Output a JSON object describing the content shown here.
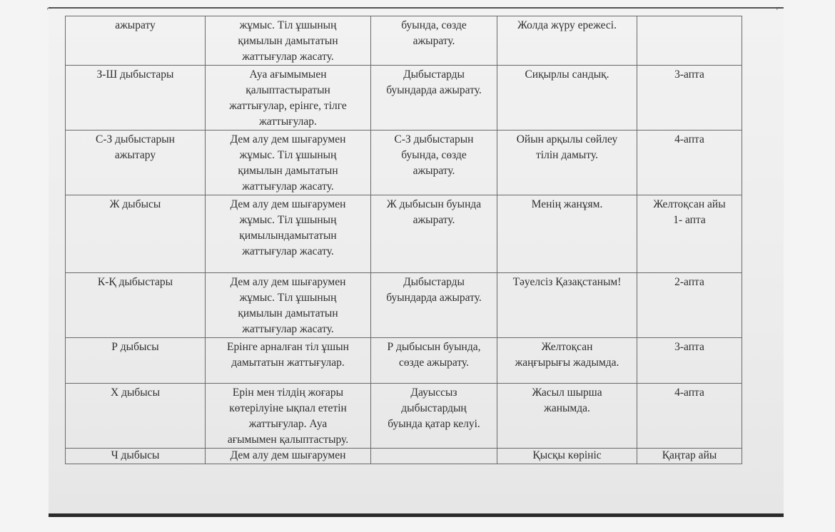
{
  "rows": [
    {
      "c1": "ажырату",
      "c2": "жұмыс. Тіл ұшының\nқимылын дамытатын\nжаттығулар жасату.",
      "c3": "буында, сөзде\nажырату.",
      "c4": "Жолда жүру ережесі.",
      "c5": ""
    },
    {
      "c1": "З-Ш дыбыстары",
      "c2": "Ауа ағымымыен\nқалыптастыратын\nжаттығулар, ерінге, тілге\nжаттығулар.",
      "c3": "Дыбыстарды\nбуындарда ажырату.",
      "c4": "Сиқырлы сандық.",
      "c5": "3-апта"
    },
    {
      "c1": "С-З дыбыстарын\nажытару",
      "c2": "Дем алу дем шығарумен\nжұмыс. Тіл ұшының\nқимылын дамытатын\nжаттығулар жасату.",
      "c3": "С-З дыбыстарын\nбуында, сөзде\nажырату.",
      "c4": "Ойын арқылы сөйлеу\nтілін дамыту.",
      "c5": "4-апта"
    },
    {
      "c1": "Ж дыбысы",
      "c2": "Дем алу дем шығарумен\nжұмыс. Тіл ұшының\nқимылындамытатын\nжаттығулар жасату.",
      "c3": "Ж дыбысын буында\nажырату.",
      "c4": "Менің жанұям.",
      "c5": "Желтоқсан айы\n1-  апта"
    },
    {
      "c1": "К-Қ дыбыстары",
      "c2": "Дем алу дем шығарумен\nжұмыс. Тіл ұшының\nқимылын дамытатын\nжаттығулар жасату.",
      "c3": "Дыбыстарды\nбуындарда ажырату.",
      "c4": "Тәуелсіз Қазақстаным!",
      "c5": "2-апта"
    },
    {
      "c1": "Р дыбысы",
      "c2": "Ерінге арналған тіл ұшын\nдамытатын жаттығулар.",
      "c3": "Р дыбысын буында,\nсөзде ажырату.",
      "c4": "Желтоқсан\nжаңғырығы жадымда.",
      "c5": "3-апта"
    },
    {
      "c1": "Х дыбысы",
      "c2": "Ерін мен тілдің жоғары\nкөтерілуіне ықпал ететін\nжаттығулар. Ауа\nағымымен қалыптастыру.",
      "c3": "Дауыссыз\nдыбыстардың\nбуында қатар келуі.",
      "c4": "Жасыл шырша\nжанымда.",
      "c5": "4-апта"
    },
    {
      "c1": "Ч дыбысы",
      "c2": "Дем алу дем шығарумен",
      "c3": "",
      "c4": "Қысқы көрініс",
      "c5": "Қаңтар айы"
    }
  ]
}
